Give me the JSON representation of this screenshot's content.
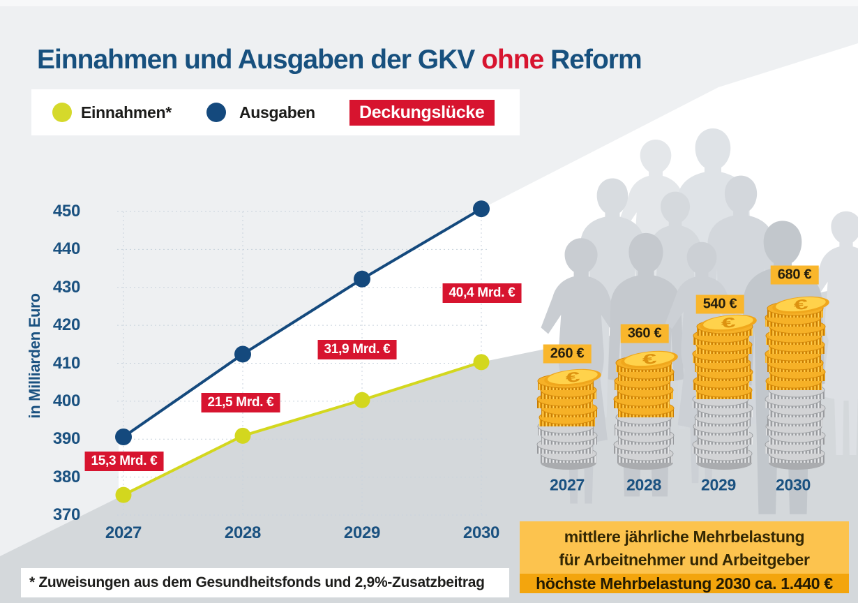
{
  "title": {
    "part1": "Einnahmen und Ausgaben der GKV ",
    "highlight": "ohne",
    "part2": " Reform"
  },
  "legend": {
    "einnahmen_label": "Einnahmen*",
    "ausgaben_label": "Ausgaben",
    "gap_badge": "Deckungslücke"
  },
  "chart_data": {
    "type": "line",
    "title": "Einnahmen und Ausgaben der GKV ohne Reform",
    "ylabel": "in Milliarden Euro",
    "ylim": [
      370,
      450
    ],
    "yticks": [
      450,
      440,
      430,
      420,
      410,
      400,
      390,
      380,
      370
    ],
    "grid": "dotted",
    "legend_position": "top",
    "categories": [
      "2027",
      "2028",
      "2029",
      "2030"
    ],
    "series": [
      {
        "name": "Einnahmen*",
        "color": "#d3d71e",
        "values": [
          375.3,
          390.9,
          400.3,
          410.3
        ]
      },
      {
        "name": "Ausgaben",
        "color": "#14497d",
        "values": [
          390.6,
          412.4,
          432.2,
          450.7
        ]
      }
    ],
    "gap_values_mrd": [
      15.3,
      21.5,
      31.9,
      40.4
    ],
    "gap_labels": [
      "15,3 Mrd. €",
      "21,5 Mrd. €",
      "31,9 Mrd. €",
      "40,4 Mrd. €"
    ],
    "burden_chart": {
      "type": "bar",
      "categories": [
        "2027",
        "2028",
        "2029",
        "2030"
      ],
      "values": [
        260,
        360,
        540,
        680
      ],
      "labels": [
        "260 €",
        "360 €",
        "540 €",
        "680 €"
      ]
    },
    "coin_symbol": "€"
  },
  "footnote": "* Zuweisungen aus dem Gesundheitsfonds und 2,9%-Zusatzbeitrag",
  "burden_box": {
    "line1": "mittlere jährliche Mehrbelastung",
    "line2": "für Arbeitnehmer und Arbeitgeber",
    "line3": "höchste Mehrbelastung 2030 ca. 1.440 €"
  },
  "colors": {
    "accent_red": "#d7142f",
    "einnahmen": "#d3d71e",
    "ausgaben": "#14497d",
    "axis_blue": "#1a5180",
    "title_blue": "#17507e",
    "orange_badge": "#f9b62c",
    "orange_box": "#fcc34e",
    "orange_strip": "#f3a50d",
    "wedge_gray": "#d4d8db",
    "bg_gray": "#eef0f2"
  }
}
